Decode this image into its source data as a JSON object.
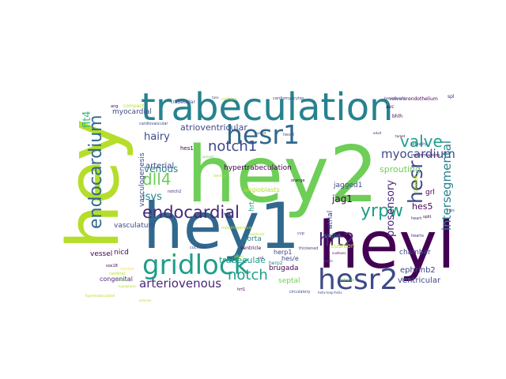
{
  "colors": [
    "#440154",
    "#482878",
    "#3e4989",
    "#31688e",
    "#26828e",
    "#1f9e89",
    "#35b779",
    "#6ece58",
    "#b5de2b",
    "#fde725"
  ],
  "words": [
    {
      "text": "hey2",
      "color": "#6ece58"
    },
    {
      "text": "hey",
      "color": "#b5de2b"
    },
    {
      "text": "hey1",
      "color": "#31688e"
    },
    {
      "text": "heyl",
      "color": "#440154"
    },
    {
      "text": "trabeculation",
      "color": "#26828e"
    },
    {
      "text": "gridlock",
      "color": "#1f9e89"
    },
    {
      "text": "hesr2",
      "color": "#3e4989"
    },
    {
      "text": "hesr1",
      "color": "#31688e"
    },
    {
      "text": "endocardium",
      "color": "#31688e"
    },
    {
      "text": "endocardial",
      "color": "#482878"
    },
    {
      "text": "notch1",
      "color": "#3e4989"
    },
    {
      "text": "hesr",
      "color": "#3e4989"
    },
    {
      "text": "valve",
      "color": "#1f9e89"
    },
    {
      "text": "yrpw",
      "color": "#1f9e89"
    },
    {
      "text": "hrt2",
      "color": "#482878"
    },
    {
      "text": "notch",
      "color": "#1f9e89"
    },
    {
      "text": "dll4",
      "color": "#6ece58"
    },
    {
      "text": "myocardium",
      "color": "#3e4989"
    },
    {
      "text": "intersegmental",
      "color": "#26828e"
    },
    {
      "text": "prosensory",
      "color": "#482878"
    },
    {
      "text": "arteriovenous",
      "color": "#482878"
    },
    {
      "text": "hairy",
      "color": "#3e4989"
    },
    {
      "text": "venous",
      "color": "#26828e"
    },
    {
      "text": "flt4",
      "color": "#35b779"
    },
    {
      "text": "isvs",
      "color": "#26828e"
    },
    {
      "text": "atrioventricular",
      "color": "#3e4989"
    },
    {
      "text": "sprouting",
      "color": "#6ece58"
    },
    {
      "text": "arterial",
      "color": "#3e4989"
    },
    {
      "text": "vasculogenesis",
      "color": "#3e4989"
    },
    {
      "text": "jagged1",
      "color": "#3e4989"
    },
    {
      "text": "jag1",
      "color": "#440154"
    },
    {
      "text": "hes5",
      "color": "#440154"
    },
    {
      "text": "ephrinb2",
      "color": "#3e4989"
    },
    {
      "text": "ventricular",
      "color": "#3e4989"
    },
    {
      "text": "angioblasts",
      "color": "#b5de2b"
    },
    {
      "text": "hypertrabeculation",
      "color": "#440154"
    },
    {
      "text": "chamber",
      "color": "#3e4989"
    },
    {
      "text": "trabeculae",
      "color": "#1f9e89"
    },
    {
      "text": "aorta",
      "color": "#26828e"
    },
    {
      "text": "brugada",
      "color": "#440154"
    },
    {
      "text": "vasculature",
      "color": "#3e4989"
    },
    {
      "text": "myocardial",
      "color": "#3e4989"
    },
    {
      "text": "vessel",
      "color": "#440154"
    },
    {
      "text": "nicd",
      "color": "#440154"
    },
    {
      "text": "congenital",
      "color": "#482878"
    },
    {
      "text": "herp1",
      "color": "#3e4989"
    },
    {
      "text": "herp2",
      "color": "#26828e"
    },
    {
      "text": "hes/e",
      "color": "#3e4989"
    },
    {
      "text": "septal",
      "color": "#6ece58"
    },
    {
      "text": "hrt",
      "color": "#1f9e89"
    },
    {
      "text": "atrial",
      "color": "#3e4989"
    },
    {
      "text": "canal",
      "color": "#b5de2b"
    },
    {
      "text": "grl",
      "color": "#440154"
    },
    {
      "text": "veins",
      "color": "#26828e"
    },
    {
      "text": "cushion",
      "color": "#b5de2b"
    },
    {
      "text": "hes1",
      "color": "#440154"
    },
    {
      "text": "compact",
      "color": "#b5de2b"
    },
    {
      "text": "trabecular",
      "color": "#3e4989"
    },
    {
      "text": "valvular",
      "color": "#3e4989"
    },
    {
      "text": "cardiomyocytes",
      "color": "#3e4989"
    },
    {
      "text": "endothelium",
      "color": "#440154"
    },
    {
      "text": "avc",
      "color": "#440154"
    },
    {
      "text": "bhlh",
      "color": "#440154"
    },
    {
      "text": "cochlea",
      "color": "#b5de2b"
    },
    {
      "text": "malformations",
      "color": "#440154"
    },
    {
      "text": "ventricle",
      "color": "#440154"
    },
    {
      "text": "heart",
      "color": "#482878"
    },
    {
      "text": "split",
      "color": "#440154"
    },
    {
      "text": "hearts",
      "color": "#482878"
    },
    {
      "text": "cardinal",
      "color": "#b5de2b"
    },
    {
      "text": "sox18",
      "color": "#440154"
    },
    {
      "text": "cochlear",
      "color": "#3e4989"
    },
    {
      "text": "notch2",
      "color": "#482878"
    },
    {
      "text": "hrt1",
      "color": "#440154"
    },
    {
      "text": "hesr3",
      "color": "#3e4989"
    },
    {
      "text": "herp",
      "color": "#31688e"
    },
    {
      "text": "spl",
      "color": "#482878"
    },
    {
      "text": "morphogenesis",
      "color": "#b5de2b"
    },
    {
      "text": "cvp",
      "color": "#3e4989"
    },
    {
      "text": "tase",
      "color": "#3e4989"
    },
    {
      "text": "cardiac",
      "color": "#fde725"
    },
    {
      "text": "lethality",
      "color": "#3e4989"
    },
    {
      "text": "hes",
      "color": "#3e4989"
    },
    {
      "text": "epithelial",
      "color": "#b5de2b"
    },
    {
      "text": "sprouts",
      "color": "#6ece58"
    },
    {
      "text": "arteries",
      "color": "#b5de2b"
    },
    {
      "text": "circulatory",
      "color": "#3e4989"
    },
    {
      "text": "helix-loop-helix",
      "color": "#3e4989"
    },
    {
      "text": "thickened",
      "color": "#3e4989"
    },
    {
      "text": "hemodynamic",
      "color": "#482878"
    },
    {
      "text": "ang",
      "color": "#440154"
    },
    {
      "text": "aortic",
      "color": "#3e4989"
    },
    {
      "text": "orange",
      "color": "#440154"
    },
    {
      "text": "cardiovascular",
      "color": "#3e4989"
    },
    {
      "text": "deletion",
      "color": "#b5de2b"
    },
    {
      "text": "cushions",
      "color": "#440154"
    },
    {
      "text": "vsd",
      "color": "#440154"
    },
    {
      "text": "hypoplasia",
      "color": "#b5de2b"
    },
    {
      "text": "stabilin",
      "color": "#6ece58"
    },
    {
      "text": "mutant",
      "color": "#3e4989"
    },
    {
      "text": "hypertrabeculated",
      "color": "#b5de2b"
    },
    {
      "text": "zebrafish",
      "color": "#6ece58"
    },
    {
      "text": "adult",
      "color": "#482878"
    },
    {
      "text": "loss",
      "color": "#440154"
    },
    {
      "text": "target",
      "color": "#440154"
    },
    {
      "text": "genes",
      "color": "#b5de2b"
    }
  ]
}
